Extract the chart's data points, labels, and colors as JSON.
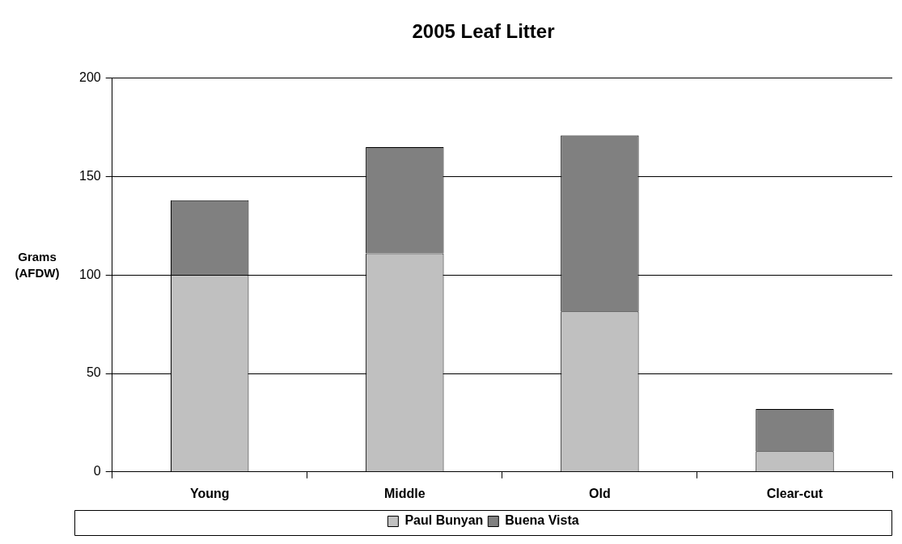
{
  "chart_data": {
    "type": "bar",
    "title": "2005 Leaf Litter",
    "ylabel": "Grams (AFDW)",
    "categories": [
      "Young",
      "Middle",
      "Old",
      "Clear-cut"
    ],
    "stacked": true,
    "series": [
      {
        "name": "Paul Bunyan",
        "color": "#c0c0c0",
        "values": [
          100,
          111,
          81.5,
          10.5
        ]
      },
      {
        "name": "Buena Vista",
        "color": "#808080",
        "values": [
          38,
          54,
          89.5,
          21.5
        ]
      }
    ],
    "ylim": [
      0,
      200
    ],
    "yticks": [
      0,
      50,
      100,
      150,
      200
    ],
    "grid": "y",
    "legend": "bottom"
  }
}
